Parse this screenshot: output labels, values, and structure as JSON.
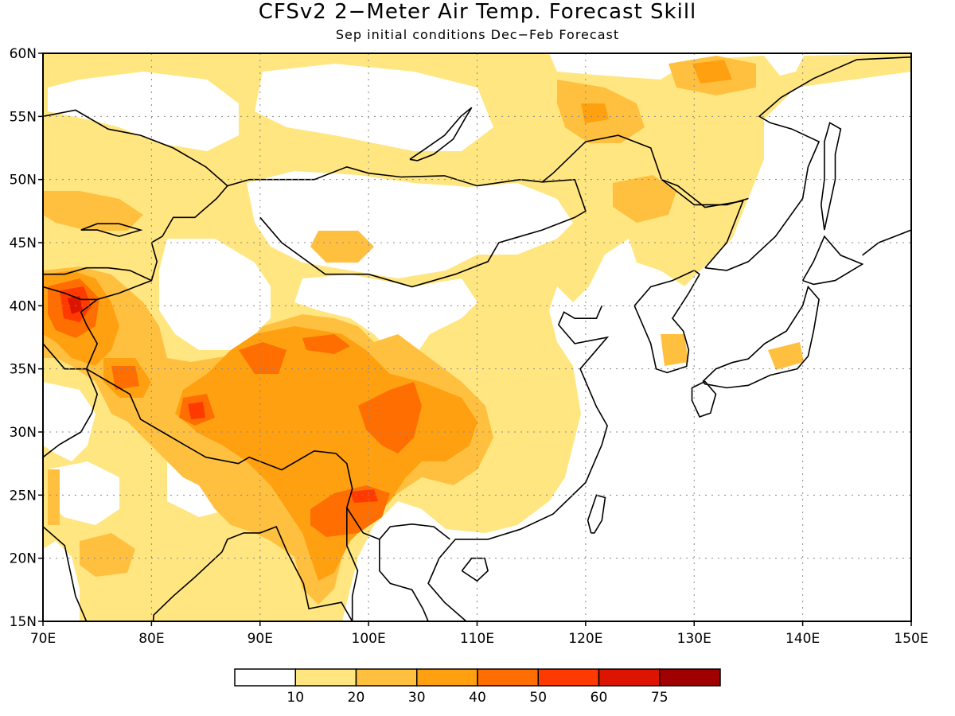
{
  "title": "CFSv2 2−Meter Air Temp. Forecast Skill",
  "subtitle": "Sep initial conditions  Dec−Feb Forecast",
  "map": {
    "lon_range": [
      70,
      150
    ],
    "lat_range": [
      15,
      60
    ],
    "lon_ticks": [
      "70E",
      "80E",
      "90E",
      "100E",
      "110E",
      "120E",
      "130E",
      "140E",
      "150E"
    ],
    "lat_ticks": [
      "15N",
      "20N",
      "25N",
      "30N",
      "35N",
      "40N",
      "45N",
      "50N",
      "55N",
      "60N"
    ],
    "gridlines": "dotted"
  },
  "colorbar": {
    "levels": [
      "10",
      "20",
      "30",
      "40",
      "50",
      "60",
      "75"
    ],
    "colors": [
      "#ffffff",
      "#ffe680",
      "#ffc040",
      "#ffa010",
      "#ff6e00",
      "#ff3a00",
      "#dd1500",
      "#a10000"
    ]
  }
}
